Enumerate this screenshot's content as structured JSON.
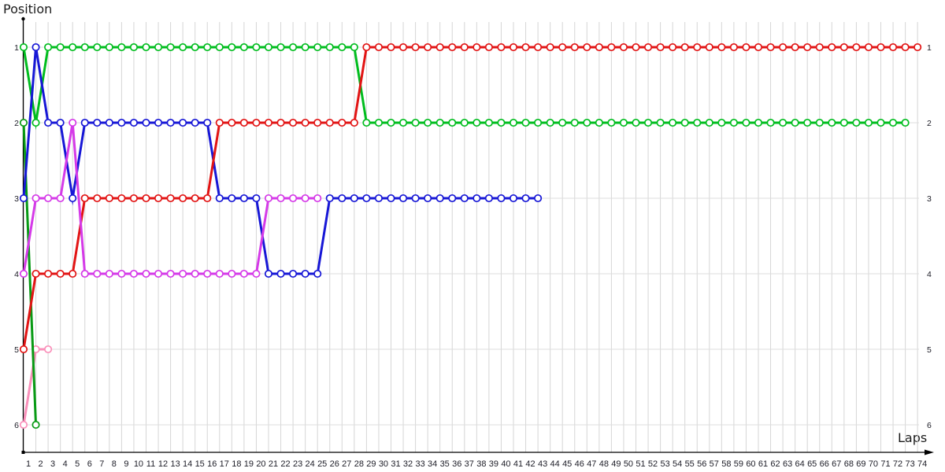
{
  "chart_data": {
    "type": "line",
    "xlabel": "Laps",
    "ylabel": "Position",
    "x_min": 1,
    "x_max": 74,
    "y_inverted": true,
    "grid": true,
    "legend": "none",
    "x_ticks": [
      1,
      2,
      3,
      4,
      5,
      6,
      7,
      8,
      9,
      10,
      11,
      12,
      13,
      14,
      15,
      16,
      17,
      18,
      19,
      20,
      21,
      22,
      23,
      24,
      25,
      26,
      27,
      28,
      29,
      30,
      31,
      32,
      33,
      34,
      35,
      36,
      37,
      38,
      39,
      40,
      41,
      42,
      43,
      44,
      45,
      46,
      47,
      48,
      49,
      50,
      51,
      52,
      53,
      54,
      55,
      56,
      57,
      58,
      59,
      60,
      61,
      62,
      63,
      64,
      65,
      66,
      67,
      68,
      69,
      70,
      71,
      72,
      73,
      74
    ],
    "y_ticks": [
      1,
      2,
      3,
      4,
      5,
      6
    ],
    "colors": {
      "grid_vertical": "#d6d6d6",
      "grid_horizontal": "#dddddd",
      "axis": "#000000",
      "tick_text": "#20202a",
      "marker_fill": "#ffffff"
    },
    "series": [
      {
        "name": "pink",
        "color": "#fa90ba",
        "start_lap": 1,
        "positions": [
          6,
          5,
          5
        ]
      },
      {
        "name": "dark-green",
        "color": "#089a14",
        "start_lap": 1,
        "positions": [
          2,
          6
        ]
      },
      {
        "name": "green",
        "color": "#00bd1e",
        "start_lap": 1,
        "positions": [
          1,
          2,
          1,
          1,
          1,
          1,
          1,
          1,
          1,
          1,
          1,
          1,
          1,
          1,
          1,
          1,
          1,
          1,
          1,
          1,
          1,
          1,
          1,
          1,
          1,
          1,
          1,
          1,
          2,
          2,
          2,
          2,
          2,
          2,
          2,
          2,
          2,
          2,
          2,
          2,
          2,
          2,
          2,
          2,
          2,
          2,
          2,
          2,
          2,
          2,
          2,
          2,
          2,
          2,
          2,
          2,
          2,
          2,
          2,
          2,
          2,
          2,
          2,
          2,
          2,
          2,
          2,
          2,
          2,
          2,
          2,
          2,
          2
        ]
      },
      {
        "name": "blue",
        "color": "#1717d6",
        "start_lap": 1,
        "positions": [
          3,
          1,
          2,
          2,
          3,
          2,
          2,
          2,
          2,
          2,
          2,
          2,
          2,
          2,
          2,
          2,
          3,
          3,
          3,
          3,
          4,
          4,
          4,
          4,
          4,
          3,
          3,
          3,
          3,
          3,
          3,
          3,
          3,
          3,
          3,
          3,
          3,
          3,
          3,
          3,
          3,
          3,
          3
        ]
      },
      {
        "name": "red",
        "color": "#e21414",
        "start_lap": 1,
        "positions": [
          5,
          4,
          4,
          4,
          4,
          3,
          3,
          3,
          3,
          3,
          3,
          3,
          3,
          3,
          3,
          3,
          2,
          2,
          2,
          2,
          2,
          2,
          2,
          2,
          2,
          2,
          2,
          2,
          1,
          1,
          1,
          1,
          1,
          1,
          1,
          1,
          1,
          1,
          1,
          1,
          1,
          1,
          1,
          1,
          1,
          1,
          1,
          1,
          1,
          1,
          1,
          1,
          1,
          1,
          1,
          1,
          1,
          1,
          1,
          1,
          1,
          1,
          1,
          1,
          1,
          1,
          1,
          1,
          1,
          1,
          1,
          1,
          1,
          1
        ]
      },
      {
        "name": "magenta",
        "color": "#d53ae8",
        "start_lap": 1,
        "positions": [
          4,
          3,
          3,
          3,
          2,
          4,
          4,
          4,
          4,
          4,
          4,
          4,
          4,
          4,
          4,
          4,
          4,
          4,
          4,
          4,
          3,
          3,
          3,
          3,
          3
        ]
      }
    ]
  }
}
